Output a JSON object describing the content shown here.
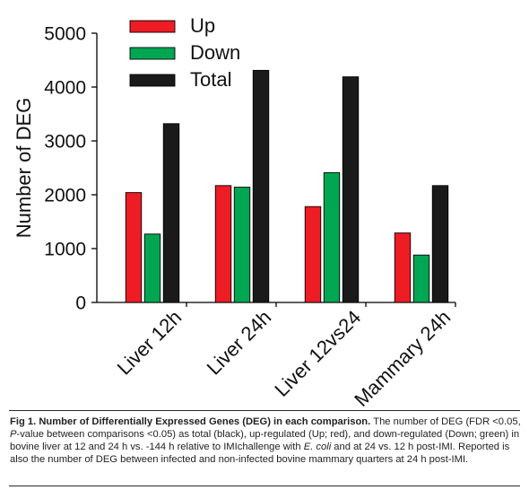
{
  "chart_data": {
    "type": "bar",
    "categories": [
      "Liver 12h",
      "Liver 24h",
      "Liver 12vs24",
      "Mammary 24h"
    ],
    "series": [
      {
        "name": "Up",
        "color": "#ee1c24",
        "values": [
          2040,
          2170,
          1780,
          1290
        ]
      },
      {
        "name": "Down",
        "color": "#00a651",
        "values": [
          1270,
          2140,
          2410,
          880
        ]
      },
      {
        "name": "Total",
        "color": "#1a1a1a",
        "values": [
          3320,
          4310,
          4190,
          2170
        ]
      }
    ],
    "ylabel": "Number of DEG",
    "xlabel": "",
    "ylim": [
      0,
      5000
    ],
    "yticks": [
      "0",
      "1000",
      "2000",
      "3000",
      "4000",
      "5000"
    ],
    "legend_position": "top-left"
  },
  "caption": {
    "lead": "Fig 1. Number of Differentially Expressed Genes (DEG) in each comparison.",
    "part1": "The number of DEG (FDR <0.05, ",
    "p_italic": "P",
    "part2": "-value between comparisons <0.05) as total (black), up-regulated (Up; red), and down-regulated (Down; green) in bovine liver at 12 and 24 h vs. -144 h relative to IMIchallenge with ",
    "ecoli_italic": "E. coli",
    "part3": " and at 24 vs. 12 h post-IMI. Reported is also the number of DEG between infected and non-infected bovine mammary quarters at 24 h post-IMI."
  }
}
